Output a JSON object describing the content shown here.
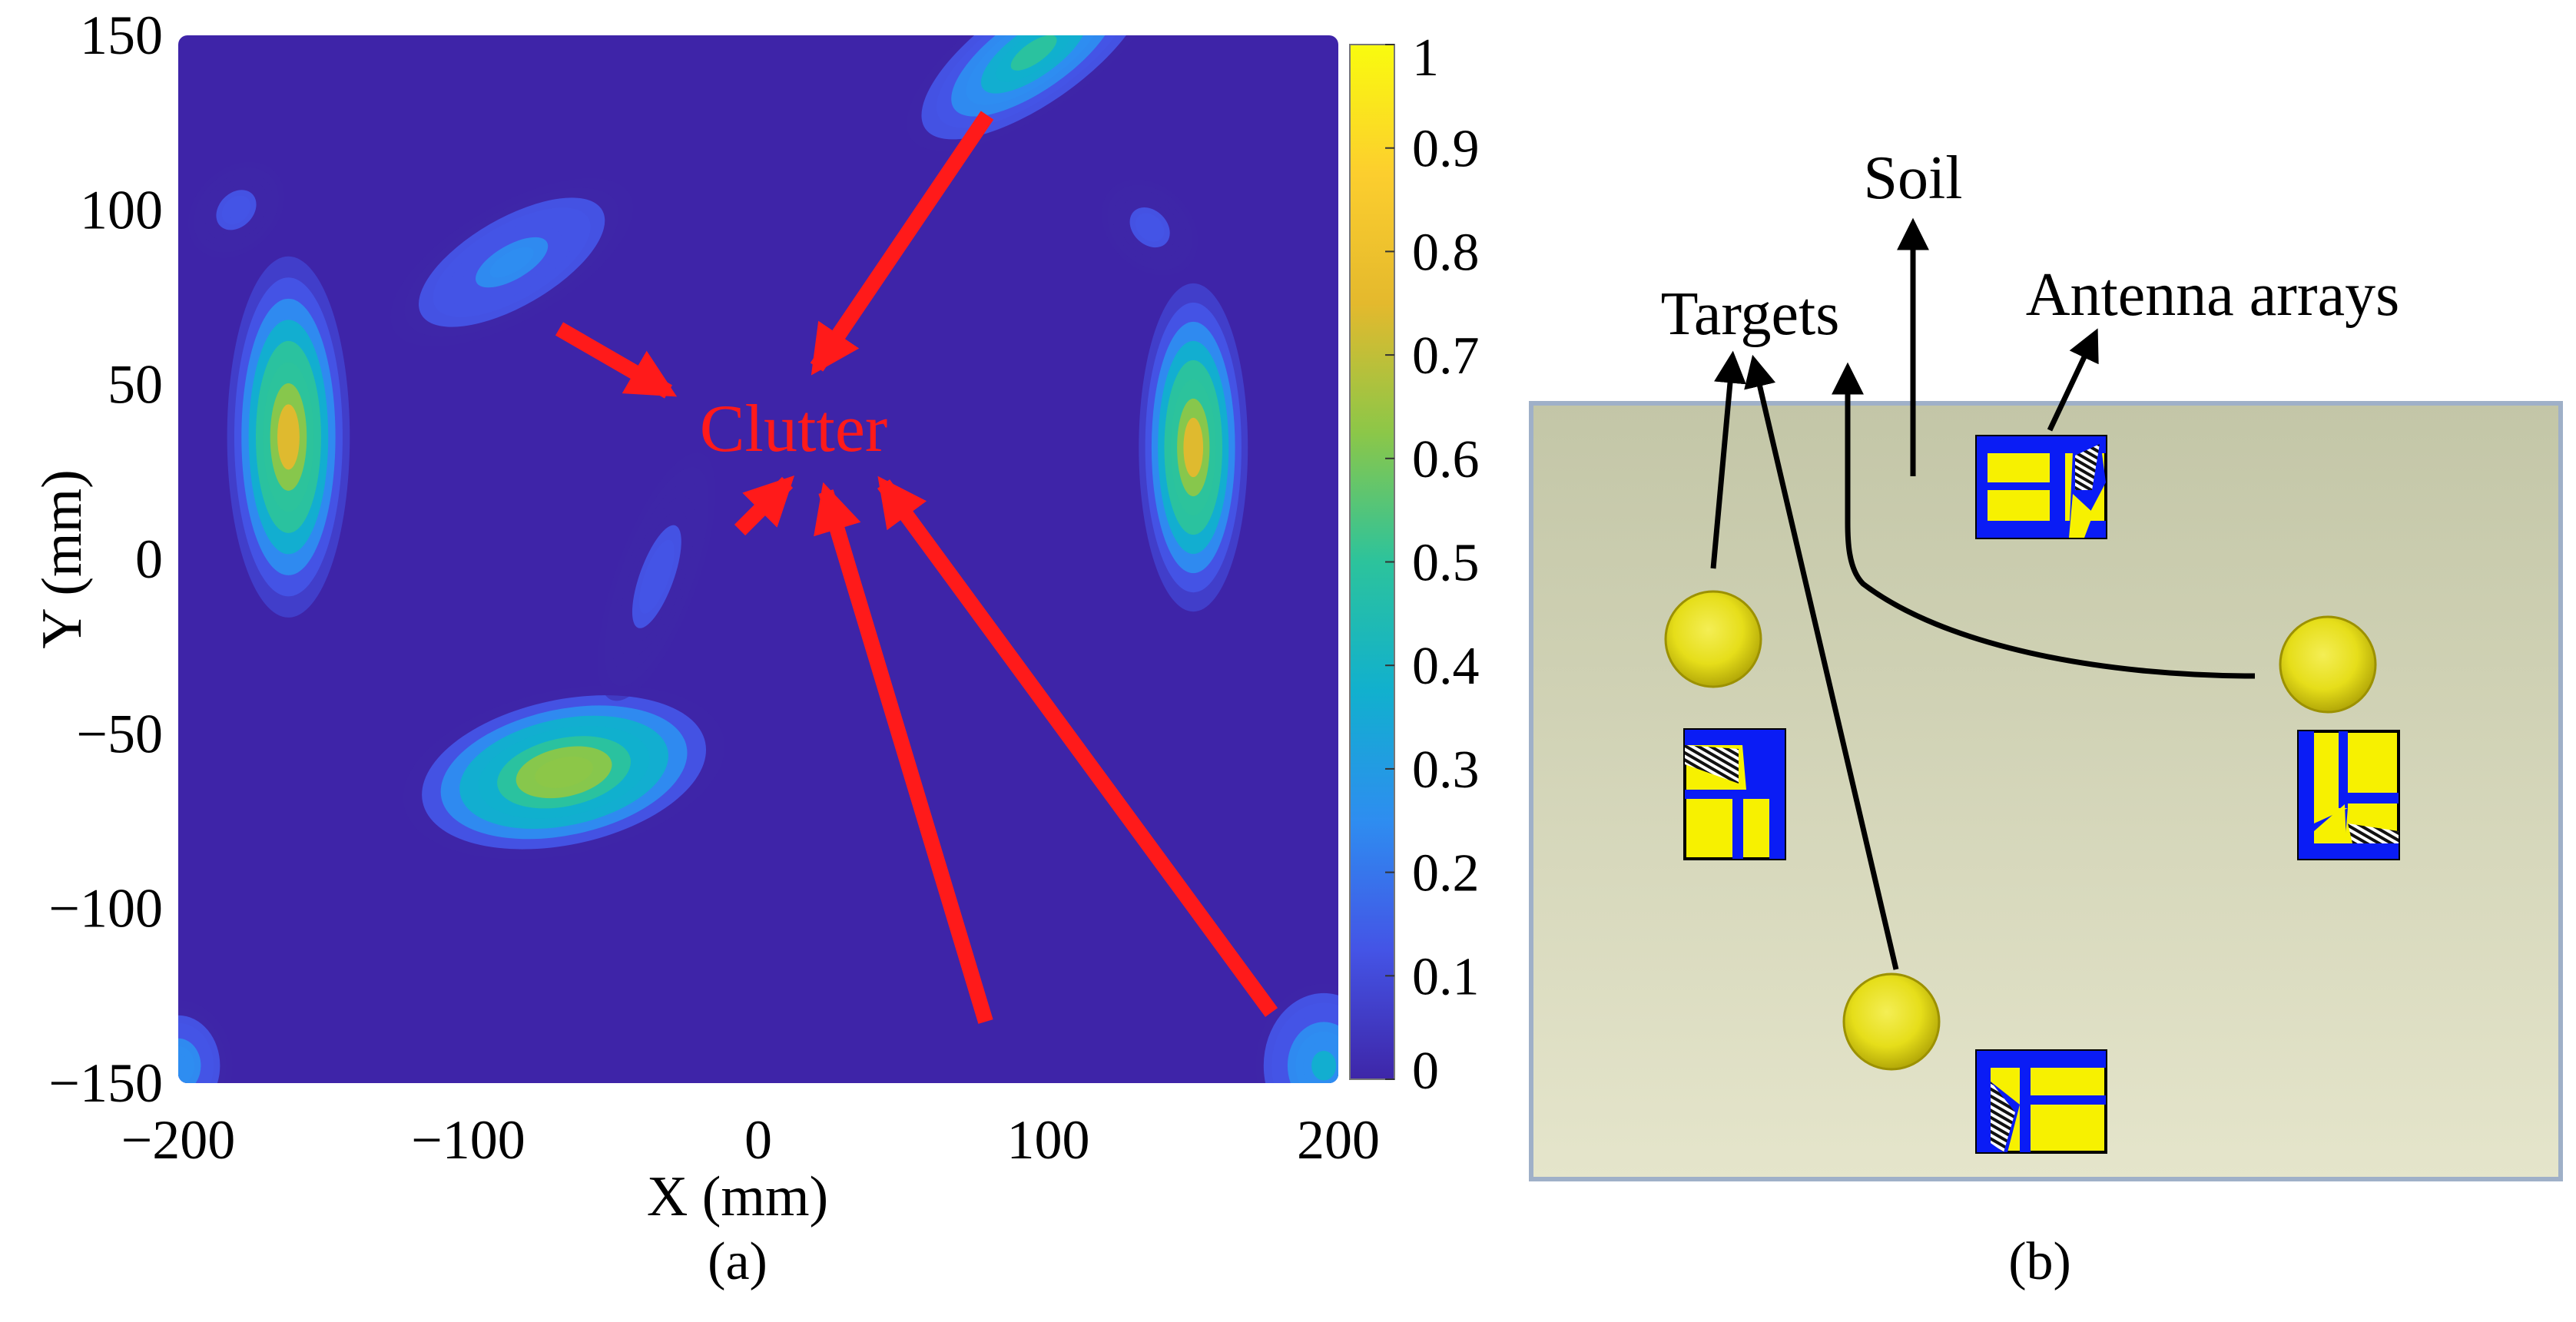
{
  "panel_a": {
    "label": "(a)",
    "annotation": "Clutter"
  },
  "panel_b": {
    "label": "(b)",
    "labels": {
      "soil": "Soil",
      "targets": "Targets",
      "antenna_arrays": "Antenna arrays"
    },
    "colors": {
      "soil_top": "#c3c6a7",
      "soil_bottom": "#e5e5cb",
      "soil_border": "#9fb0c8",
      "target_sphere": "#e6de1a",
      "antenna_blue": "#0a1cf5",
      "antenna_yellow": "#f7f100",
      "arrow": "#000000"
    }
  },
  "colors": {
    "background": "#3e24a8",
    "annotation": "#ff1a1a",
    "colormap": [
      "#3e26a8",
      "#4454e6",
      "#2e8df0",
      "#11b0ce",
      "#2cc39c",
      "#8cc748",
      "#e4b92d",
      "#fcce2e",
      "#f9fb0e"
    ]
  },
  "chart_data": {
    "type": "heatmap",
    "x_label": "X (mm)",
    "y_label": "Y (mm)",
    "x_range": [
      -200,
      200
    ],
    "y_range": [
      -150,
      150
    ],
    "x_ticks": [
      -200,
      -100,
      0,
      100,
      200
    ],
    "y_ticks": [
      150,
      100,
      50,
      0,
      -50,
      -100,
      -150
    ],
    "colorbar": {
      "range": [
        0,
        1
      ],
      "ticks": [
        1,
        0.9,
        0.8,
        0.7,
        0.6,
        0.5,
        0.4,
        0.3,
        0.2,
        0.1,
        0
      ],
      "tick_labels": [
        "1",
        "0.9",
        "0.8",
        "0.7",
        "0.6",
        "0.5",
        "0.4",
        "0.3",
        "0.2",
        "0.1",
        "0"
      ]
    },
    "peaks": [
      {
        "x": -162,
        "y": 35,
        "value": 0.85,
        "sx": 9,
        "sy": 22,
        "angle": 0
      },
      {
        "x": 150,
        "y": 32,
        "value": 0.85,
        "sx": 8,
        "sy": 20,
        "angle": 0
      },
      {
        "x": -67,
        "y": -61,
        "value": 0.75,
        "sx": 24,
        "sy": 10,
        "angle": -12
      },
      {
        "x": 95,
        "y": 145,
        "value": 0.55,
        "sx": 22,
        "sy": 7,
        "angle": -35
      },
      {
        "x": 195,
        "y": -145,
        "value": 0.4,
        "sx": 10,
        "sy": 10,
        "angle": 0
      },
      {
        "x": -200,
        "y": -145,
        "value": 0.3,
        "sx": 8,
        "sy": 8,
        "angle": 0
      },
      {
        "x": -85,
        "y": 85,
        "value": 0.25,
        "sx": 20,
        "sy": 7,
        "angle": -30
      },
      {
        "x": -180,
        "y": 100,
        "value": 0.1,
        "sx": 8,
        "sy": 5,
        "angle": -45
      },
      {
        "x": 135,
        "y": 95,
        "value": 0.1,
        "sx": 8,
        "sy": 5,
        "angle": 45
      },
      {
        "x": -35,
        "y": -5,
        "value": 0.1,
        "sx": 6,
        "sy": 16,
        "angle": 20
      }
    ]
  }
}
